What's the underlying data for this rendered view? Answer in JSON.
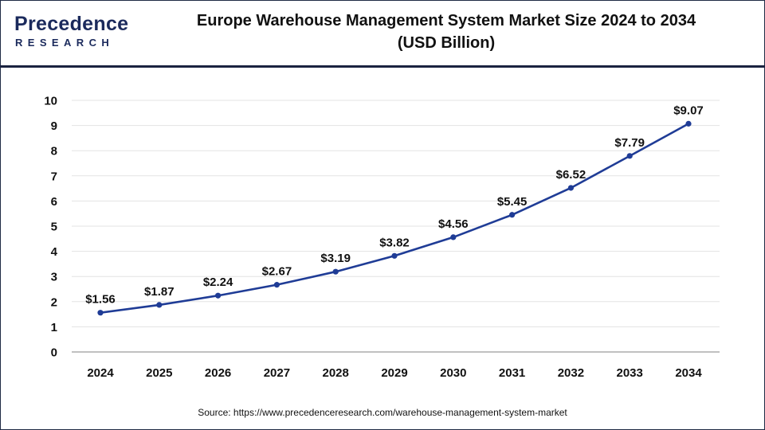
{
  "header": {
    "logo_main": "Precedence",
    "logo_sub": "RESEARCH",
    "title_line1": "Europe Warehouse Management System Market Size 2024 to 2034",
    "title_line2": "(USD Billion)"
  },
  "colors": {
    "line": "#1f3c96",
    "marker": "#1f3c96",
    "grid": "#e3e3e3",
    "axis": "#9a9a9a",
    "header_rule": "#1a2240"
  },
  "chart_data": {
    "type": "line",
    "title": "Europe Warehouse Management System Market Size 2024 to 2034 (USD Billion)",
    "categories": [
      "2024",
      "2025",
      "2026",
      "2027",
      "2028",
      "2029",
      "2030",
      "2031",
      "2032",
      "2033",
      "2034"
    ],
    "values": [
      1.56,
      1.87,
      2.24,
      2.67,
      3.19,
      3.82,
      4.56,
      5.45,
      6.52,
      7.79,
      9.07
    ],
    "data_labels": [
      "$1.56",
      "$1.87",
      "$2.24",
      "$2.67",
      "$3.19",
      "$3.82",
      "$4.56",
      "$5.45",
      "$6.52",
      "$7.79",
      "$9.07"
    ],
    "xlabel": "",
    "ylabel": "",
    "ylim": [
      0,
      10
    ],
    "yticks": [
      0,
      1,
      2,
      3,
      4,
      5,
      6,
      7,
      8,
      9,
      10
    ],
    "grid": true,
    "legend": "none",
    "markers": true
  },
  "source_text": "Source: https://www.precedenceresearch.com/warehouse-management-system-market"
}
